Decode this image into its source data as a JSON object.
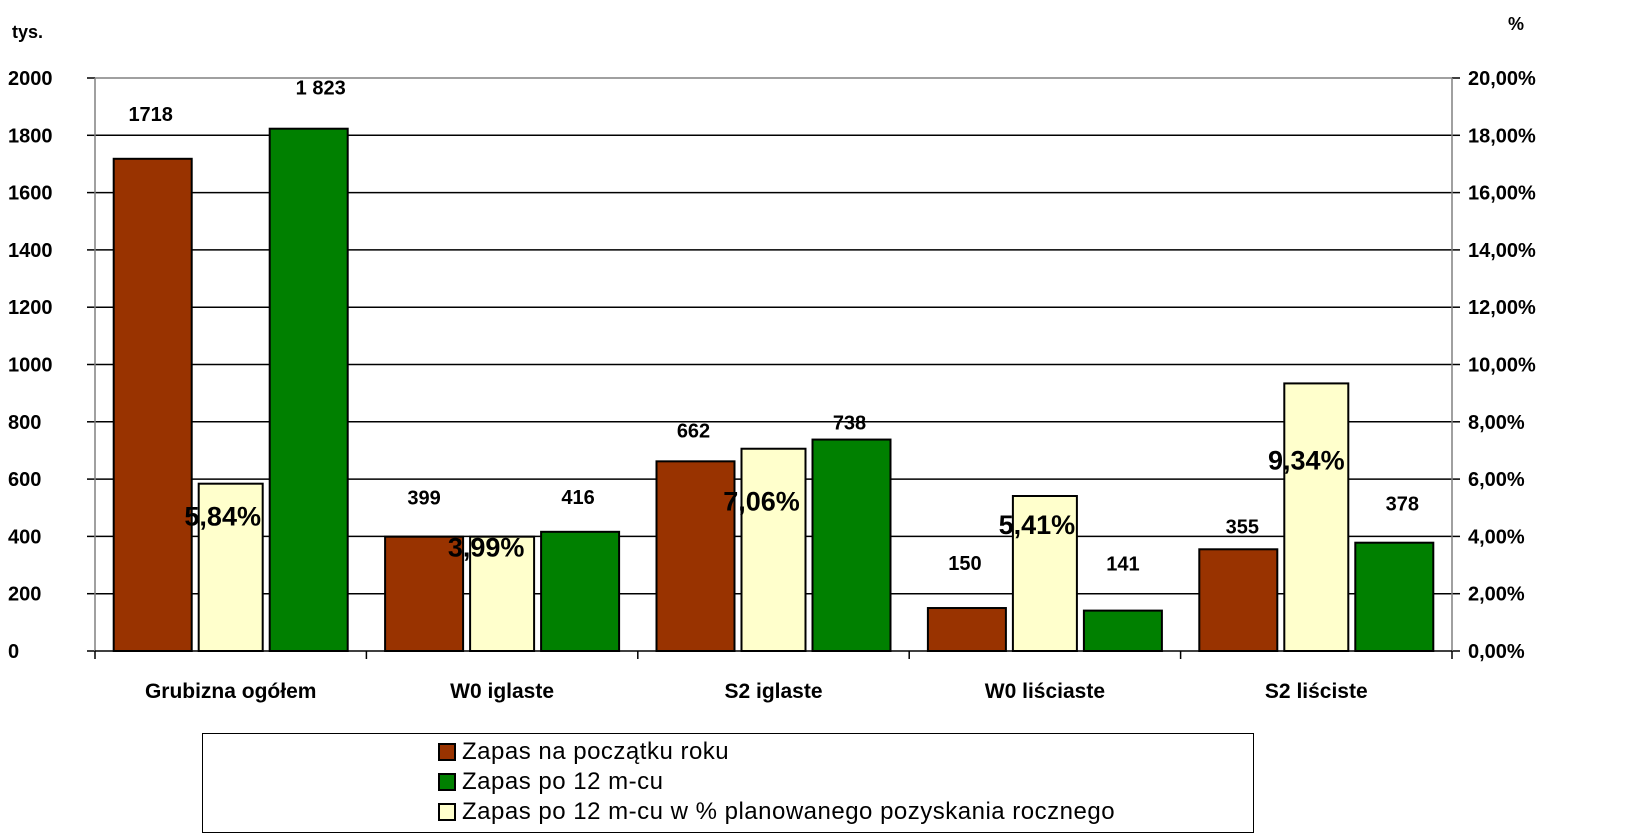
{
  "chart_data": {
    "type": "bar",
    "left_axis_unit": "tys.",
    "right_axis_unit": "%",
    "categories": [
      "Grubizna ogółem",
      "W0 iglaste",
      "S2 iglaste",
      "W0 liściaste",
      "S2 liściste"
    ],
    "y_left": {
      "min": 0,
      "max": 2000,
      "step": 200,
      "ticks": [
        "0",
        "200",
        "400",
        "600",
        "800",
        "1000",
        "1200",
        "1400",
        "1600",
        "1800",
        "2000"
      ]
    },
    "y_right": {
      "min": 0,
      "max": 0.2,
      "step": 0.02,
      "ticks": [
        "0,00%",
        "2,00%",
        "4,00%",
        "6,00%",
        "8,00%",
        "10,00%",
        "12,00%",
        "14,00%",
        "16,00%",
        "18,00%",
        "20,00%"
      ]
    },
    "grid": true,
    "series": [
      {
        "name": "Zapas na początku roku",
        "color": "#993300",
        "axis": "left",
        "values": [
          1718,
          399,
          662,
          150,
          355
        ],
        "labels": [
          "1718",
          "399",
          "662",
          "150",
          "355"
        ]
      },
      {
        "name": "Zapas po 12 m-cu",
        "color": "#008000",
        "axis": "left",
        "values": [
          1823,
          416,
          738,
          141,
          378
        ],
        "labels": [
          "1 823",
          "416",
          "738",
          "141",
          "378"
        ]
      },
      {
        "name": "Zapas po 12 m-cu w % planowanego pozyskania rocznego",
        "color": "#FFFFCC",
        "axis": "right",
        "values": [
          0.0584,
          0.0399,
          0.0706,
          0.0541,
          0.0934
        ],
        "labels": [
          "5,84%",
          "3,99%",
          "7,06%",
          "5,41%",
          "9,34%"
        ]
      }
    ],
    "legend": {
      "placement": "bottom",
      "items": [
        "Zapas na początku roku",
        "Zapas po 12 m-cu",
        "Zapas po 12 m-cu w % planowanego pozyskania rocznego"
      ]
    }
  }
}
